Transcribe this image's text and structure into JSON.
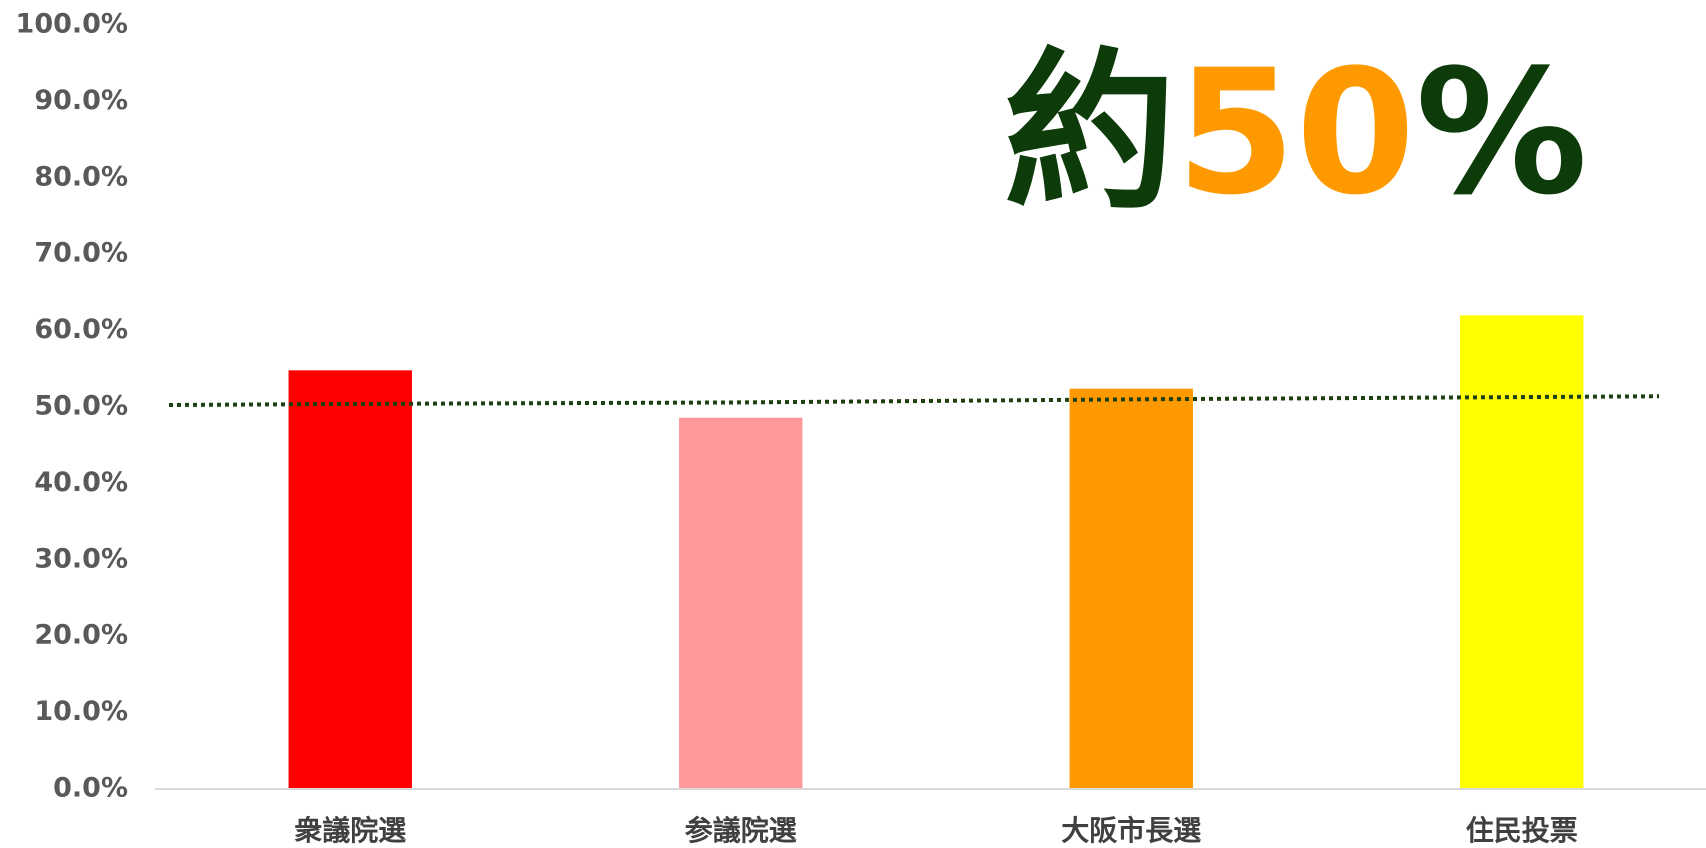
{
  "chart_data": {
    "type": "bar",
    "categories": [
      "衆議院選",
      "参議院選",
      "大阪市長選",
      "住民投票"
    ],
    "values": [
      54.8,
      48.6,
      52.4,
      62.0
    ],
    "colors": [
      "#ff0000",
      "#ff9999",
      "#ff9900",
      "#ffff00"
    ],
    "ylim": [
      0,
      100
    ],
    "yticks": [
      {
        "value": 0,
        "label": "0.0%"
      },
      {
        "value": 10,
        "label": "10.0%"
      },
      {
        "value": 20,
        "label": "20.0%"
      },
      {
        "value": 30,
        "label": "30.0%"
      },
      {
        "value": 40,
        "label": "40.0%"
      },
      {
        "value": 50,
        "label": "50.0%"
      },
      {
        "value": 60,
        "label": "60.0%"
      },
      {
        "value": 70,
        "label": "70.0%"
      },
      {
        "value": 80,
        "label": "80.0%"
      },
      {
        "value": 90,
        "label": "90.0%"
      },
      {
        "value": 100,
        "label": "100.0%"
      }
    ],
    "grid": false,
    "trendline": {
      "values": [
        50.4,
        50.6,
        51.0,
        51.3
      ],
      "color": "#1e3f10"
    },
    "annotation": [
      {
        "text": "約",
        "color": "#0d3b0a"
      },
      {
        "text": "50",
        "color": "#ff9900"
      },
      {
        "text": "%",
        "color": "#0d3b0a"
      }
    ]
  }
}
